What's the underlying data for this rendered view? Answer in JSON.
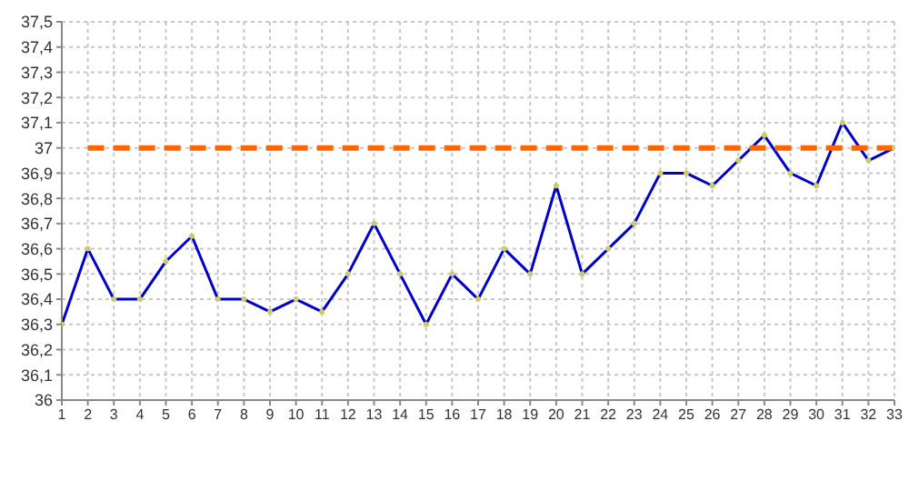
{
  "chart_data": {
    "type": "line",
    "x": [
      1,
      2,
      3,
      4,
      5,
      6,
      7,
      8,
      9,
      10,
      11,
      12,
      13,
      14,
      15,
      16,
      17,
      18,
      19,
      20,
      21,
      22,
      23,
      24,
      25,
      26,
      27,
      28,
      29,
      30,
      31,
      32,
      33
    ],
    "series": [
      {
        "color": "#0000cc",
        "marker": "circle",
        "line_style": "solid",
        "values": [
          36.3,
          36.6,
          36.4,
          36.4,
          36.55,
          36.65,
          36.4,
          36.4,
          36.35,
          36.4,
          36.35,
          36.5,
          36.7,
          36.5,
          36.3,
          36.5,
          36.4,
          36.6,
          36.5,
          36.85,
          36.5,
          36.6,
          36.7,
          36.9,
          36.9,
          36.85,
          36.95,
          37.05,
          36.9,
          36.85,
          37.1,
          36.95,
          37.0
        ]
      },
      {
        "color": "#ff6600",
        "marker": "none",
        "line_style": "dashed",
        "values": [
          null,
          37,
          37,
          37,
          37,
          37,
          37,
          37,
          37,
          37,
          37,
          37,
          37,
          37,
          37,
          37,
          37,
          37,
          37,
          37,
          37,
          37,
          37,
          37,
          37,
          37,
          37,
          37,
          37,
          37,
          37,
          37,
          37
        ]
      }
    ],
    "xlim": [
      1,
      33
    ],
    "xticks": [
      1,
      2,
      3,
      4,
      5,
      6,
      7,
      8,
      9,
      10,
      11,
      12,
      13,
      14,
      15,
      16,
      17,
      18,
      19,
      20,
      21,
      22,
      23,
      24,
      25,
      26,
      27,
      28,
      29,
      30,
      31,
      32,
      33
    ],
    "ylim": [
      36,
      37.5
    ],
    "yticks": [
      36,
      {
        "value": 36.1,
        "label": "36,1"
      },
      {
        "value": 36.2,
        "label": "36,2"
      },
      {
        "value": 36.3,
        "label": "36,3"
      },
      {
        "value": 36.4,
        "label": "36,4"
      },
      {
        "value": 36.5,
        "label": "36,5"
      },
      {
        "value": 36.6,
        "label": "36,6"
      },
      {
        "value": 36.7,
        "label": "36,7"
      },
      {
        "value": 36.8,
        "label": "36,8"
      },
      {
        "value": 36.9,
        "label": "36,9"
      },
      37,
      {
        "value": 37.1,
        "label": "37,1"
      },
      {
        "value": 37.2,
        "label": "37,2"
      },
      {
        "value": 37.3,
        "label": "37,3"
      },
      {
        "value": 37.4,
        "label": "37,4"
      },
      {
        "value": 37.5,
        "label": "37,5"
      }
    ],
    "grid": true,
    "legend": false
  }
}
